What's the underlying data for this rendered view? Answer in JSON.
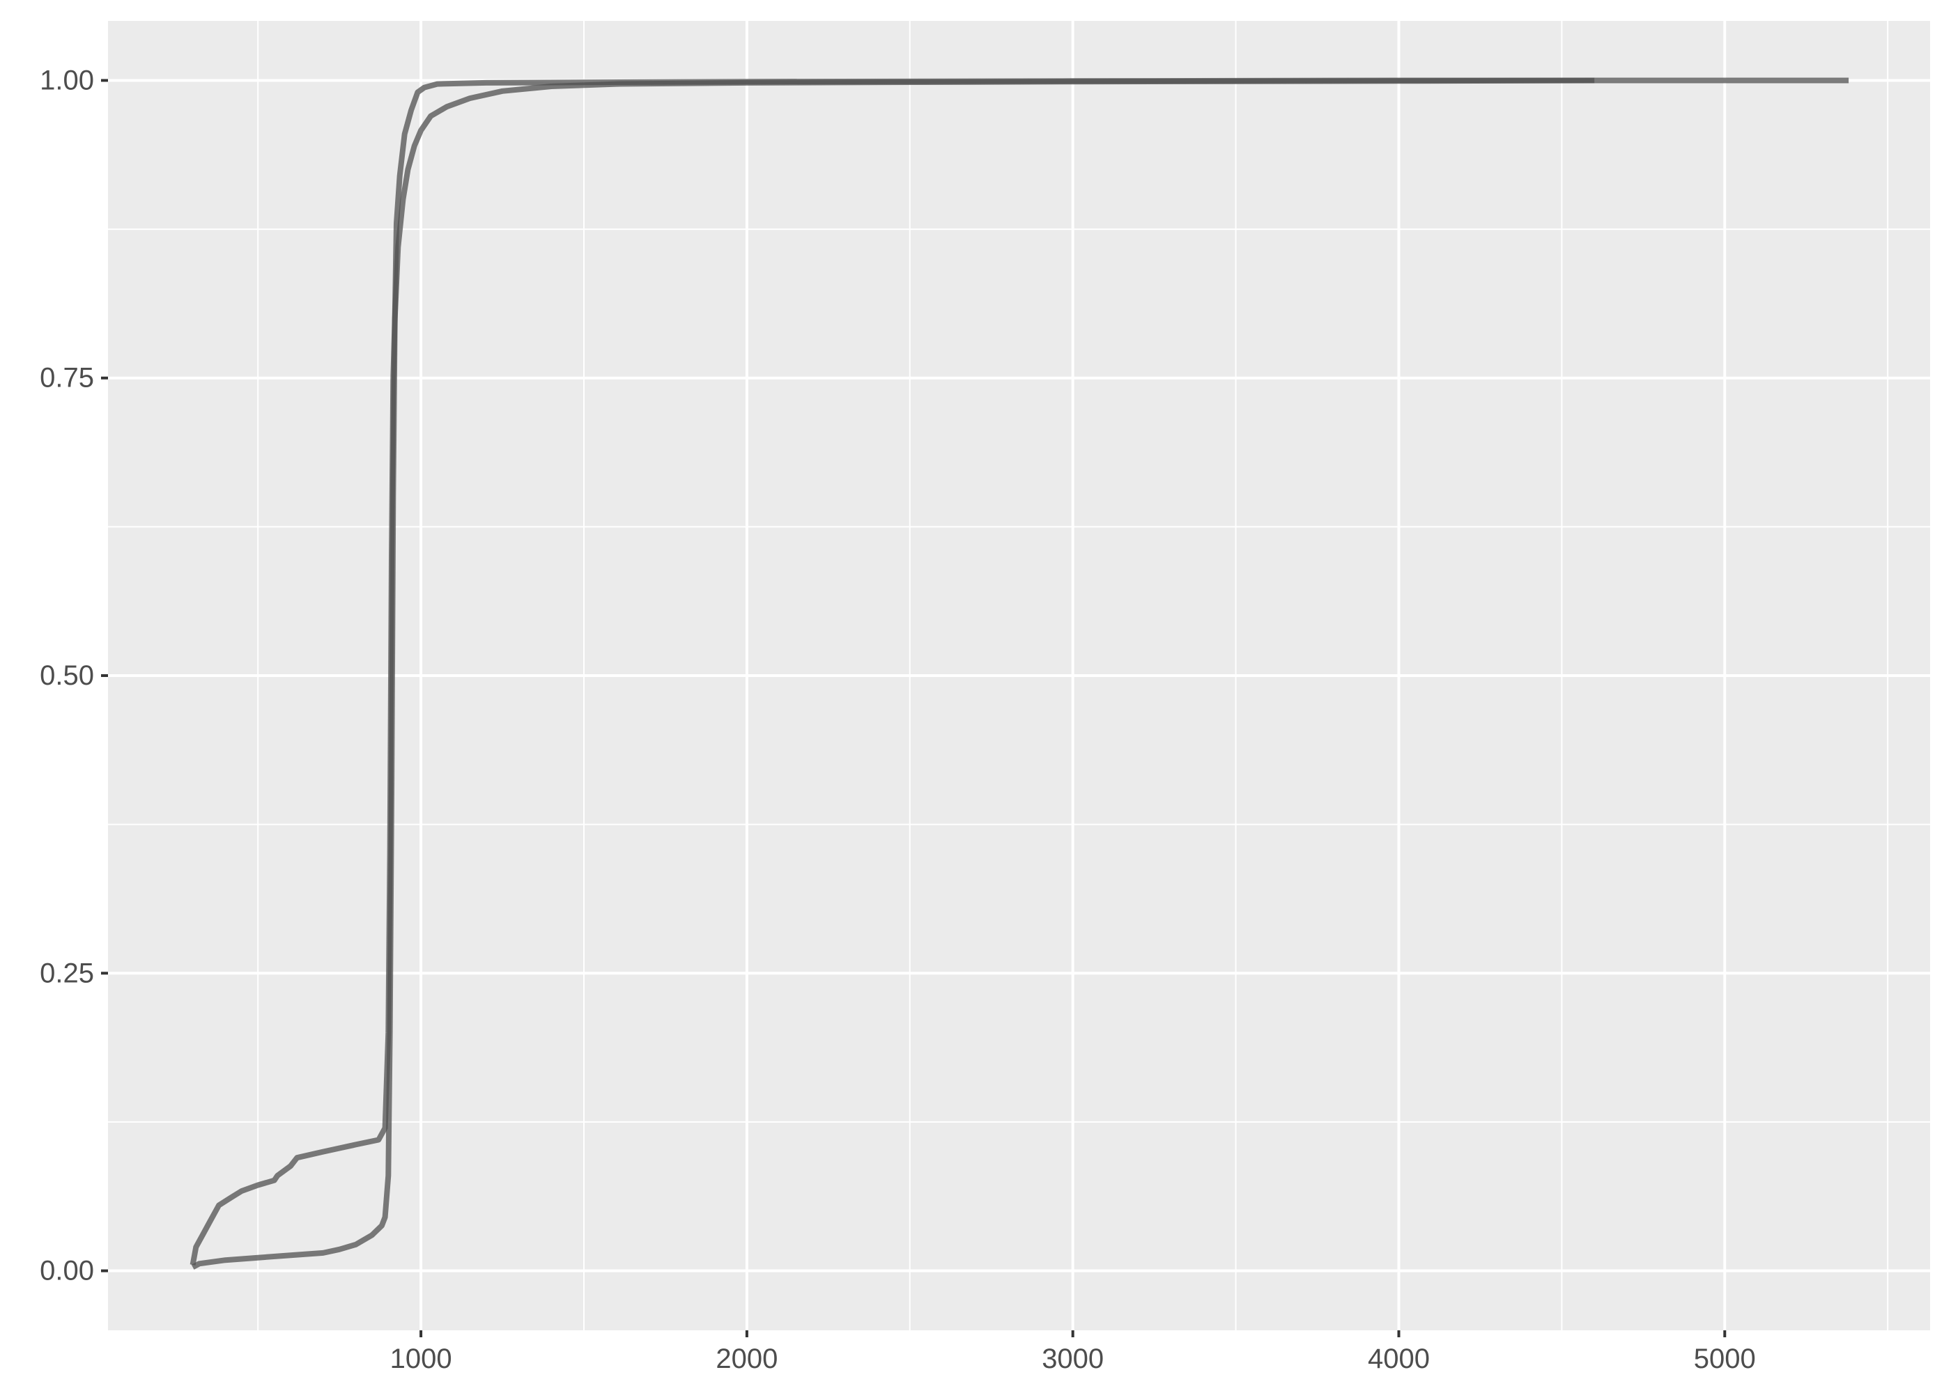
{
  "chart_data": {
    "type": "line",
    "title": "",
    "xlabel": "",
    "ylabel": "",
    "xlim": [
      40,
      5630
    ],
    "ylim": [
      -0.05,
      1.05
    ],
    "x_ticks": [
      1000,
      2000,
      3000,
      4000,
      5000
    ],
    "x_tick_labels": [
      "1000",
      "2000",
      "3000",
      "4000",
      "5000"
    ],
    "x_minor_ticks": [
      500,
      1500,
      2500,
      3500,
      4500,
      5500
    ],
    "y_ticks": [
      0,
      0.25,
      0.5,
      0.75,
      1
    ],
    "y_tick_labels": [
      "0.00",
      "0.25",
      "0.50",
      "0.75",
      "1.00"
    ],
    "y_minor_ticks": [
      0.125,
      0.375,
      0.625,
      0.875
    ],
    "grid": true,
    "colors": {
      "panel_background": "#ebebeb",
      "grid_line": "#ffffff",
      "series_line": "#505050",
      "axis_text": "#4d4d4d"
    },
    "series": [
      {
        "values": [
          [
            300,
            0.005
          ],
          [
            310,
            0.02
          ],
          [
            330,
            0.03
          ],
          [
            350,
            0.04
          ],
          [
            380,
            0.055
          ],
          [
            420,
            0.062
          ],
          [
            450,
            0.067
          ],
          [
            500,
            0.072
          ],
          [
            550,
            0.076
          ],
          [
            560,
            0.08
          ],
          [
            600,
            0.088
          ],
          [
            620,
            0.095
          ],
          [
            700,
            0.1
          ],
          [
            800,
            0.106
          ],
          [
            870,
            0.11
          ],
          [
            890,
            0.12
          ],
          [
            900,
            0.2
          ],
          [
            905,
            0.35
          ],
          [
            910,
            0.6
          ],
          [
            915,
            0.75
          ],
          [
            920,
            0.8
          ],
          [
            930,
            0.86
          ],
          [
            945,
            0.9
          ],
          [
            960,
            0.925
          ],
          [
            980,
            0.945
          ],
          [
            1000,
            0.958
          ],
          [
            1030,
            0.97
          ],
          [
            1080,
            0.978
          ],
          [
            1150,
            0.985
          ],
          [
            1250,
            0.991
          ],
          [
            1400,
            0.995
          ],
          [
            1600,
            0.997
          ],
          [
            2000,
            0.998
          ],
          [
            3000,
            0.999
          ],
          [
            4000,
            0.9995
          ],
          [
            4600,
            1.0
          ]
        ]
      },
      {
        "values": [
          [
            300,
            0.003
          ],
          [
            320,
            0.006
          ],
          [
            400,
            0.009
          ],
          [
            500,
            0.011
          ],
          [
            600,
            0.013
          ],
          [
            700,
            0.015
          ],
          [
            750,
            0.018
          ],
          [
            800,
            0.022
          ],
          [
            850,
            0.03
          ],
          [
            880,
            0.038
          ],
          [
            890,
            0.045
          ],
          [
            900,
            0.08
          ],
          [
            905,
            0.2
          ],
          [
            910,
            0.4
          ],
          [
            915,
            0.65
          ],
          [
            920,
            0.8
          ],
          [
            925,
            0.88
          ],
          [
            935,
            0.92
          ],
          [
            950,
            0.955
          ],
          [
            970,
            0.975
          ],
          [
            990,
            0.99
          ],
          [
            1010,
            0.994
          ],
          [
            1050,
            0.997
          ],
          [
            1200,
            0.998
          ],
          [
            2000,
            0.999
          ],
          [
            3000,
            0.9995
          ],
          [
            4000,
            1.0
          ],
          [
            5380,
            1.0
          ]
        ]
      }
    ]
  }
}
